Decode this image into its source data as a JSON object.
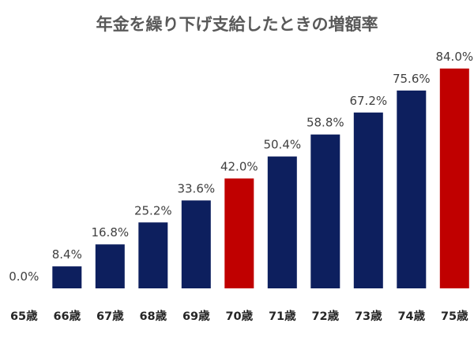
{
  "chart_data": {
    "type": "bar",
    "title": "年金を繰り下げ支給したときの増額率",
    "xlabel": "",
    "ylabel": "",
    "categories": [
      "65歳",
      "66歳",
      "67歳",
      "68歳",
      "69歳",
      "70歳",
      "71歳",
      "72歳",
      "73歳",
      "74歳",
      "75歳"
    ],
    "values": [
      0.0,
      8.4,
      16.8,
      25.2,
      33.6,
      42.0,
      50.4,
      58.8,
      67.2,
      75.6,
      84.0
    ],
    "data_labels": [
      "0.0%",
      "8.4%",
      "16.8%",
      "25.2%",
      "33.6%",
      "42.0%",
      "50.4%",
      "58.8%",
      "67.2%",
      "75.6%",
      "84.0%"
    ],
    "ylim": [
      0,
      84
    ],
    "grid": false,
    "legend": "none",
    "colors": {
      "default": "#0d1f5e",
      "highlight": "#c00000"
    },
    "highlight_categories": [
      "70歳",
      "75歳"
    ]
  }
}
